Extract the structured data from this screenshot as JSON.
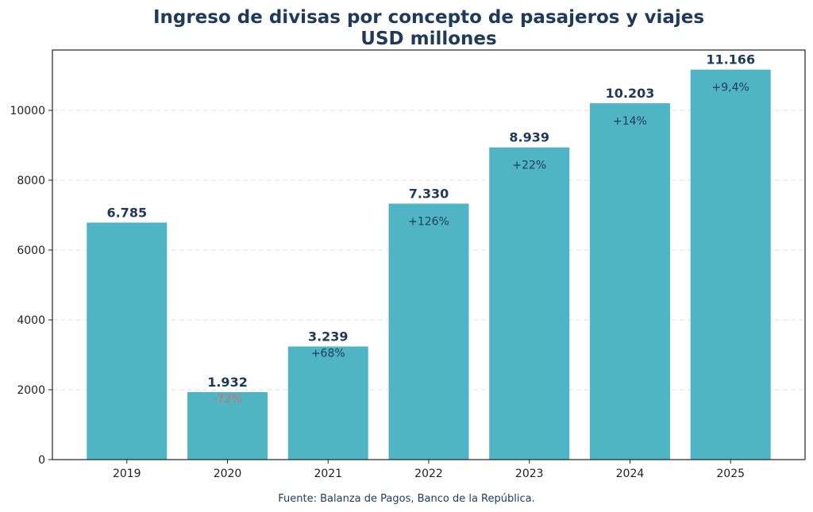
{
  "chart_data": {
    "type": "bar",
    "title": "Ingreso de divisas por concepto de pasajeros y viajes",
    "subtitle": "USD millones",
    "categories": [
      "2019",
      "2020",
      "2021",
      "2022",
      "2023",
      "2024",
      "2025"
    ],
    "values": [
      6785,
      1932,
      3239,
      7330,
      8939,
      10203,
      11166
    ],
    "value_labels": [
      "6.785",
      "1.932",
      "3.239",
      "7.330",
      "8.939",
      "10.203",
      "11.166"
    ],
    "change_labels": [
      "",
      "-72%",
      "+68%",
      "+126%",
      "+22%",
      "+14%",
      "+9,4%"
    ],
    "change_colors": [
      "#1f3a5a",
      "#e06666",
      "#1f3a5a",
      "#1f3a5a",
      "#1f3a5a",
      "#1f3a5a",
      "#1f3a5a"
    ],
    "ylim": [
      0,
      11727
    ],
    "yticks": [
      0,
      2000,
      4000,
      6000,
      8000,
      10000
    ],
    "ytick_labels": [
      "0",
      "2000",
      "4000",
      "6000",
      "8000",
      "10000"
    ],
    "grid": true,
    "xlabel": "",
    "ylabel": "",
    "bar_color": "#4fb5c5",
    "title_color": "#1f3a5a",
    "source": "Fuente: Balanza de Pagos, Banco de la República."
  }
}
